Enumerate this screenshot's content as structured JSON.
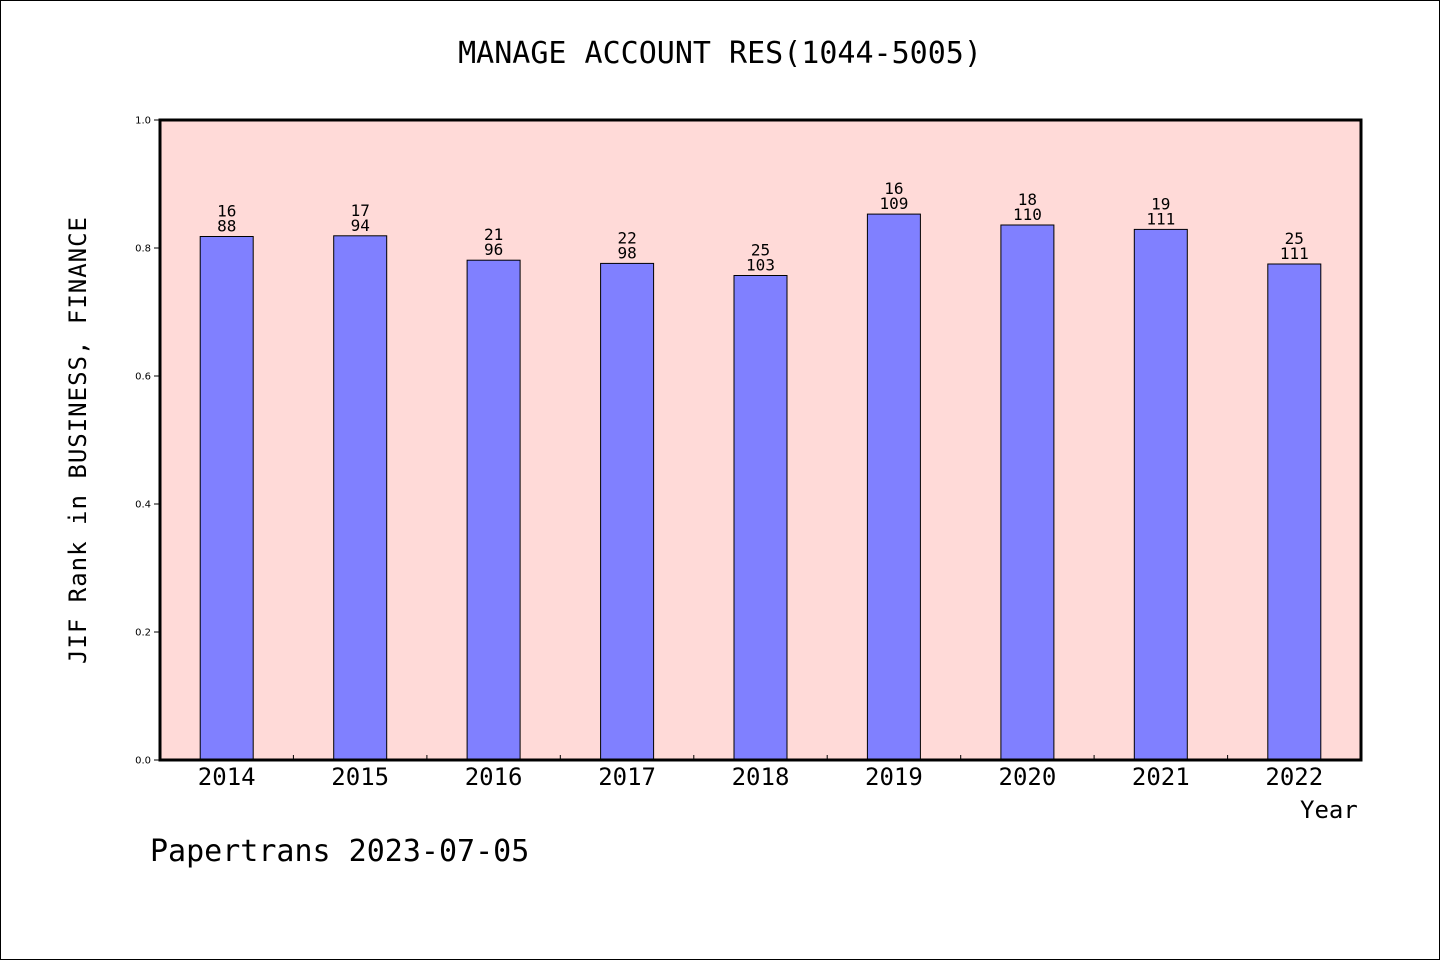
{
  "title": "MANAGE ACCOUNT RES(1044-5005)",
  "footer": "Papertrans 2023-07-05",
  "colors": {
    "plot_background": "#ffdad8",
    "bar_fill": "#8080ff",
    "bar_stroke": "#000000"
  },
  "chart_data": {
    "type": "bar",
    "title": "MANAGE ACCOUNT RES(1044-5005)",
    "xlabel": "Year",
    "ylabel": "JIF Rank in BUSINESS, FINANCE",
    "ylim": [
      0.0,
      1.0
    ],
    "yticks": [
      "0.0",
      "0.2",
      "0.4",
      "0.6",
      "0.8",
      "1.0"
    ],
    "ytick_values": [
      0.0,
      0.2,
      0.4,
      0.6,
      0.8,
      1.0
    ],
    "grid": false,
    "categories": [
      "2014",
      "2015",
      "2016",
      "2017",
      "2018",
      "2019",
      "2020",
      "2021",
      "2022"
    ],
    "values": [
      0.818,
      0.819,
      0.781,
      0.776,
      0.757,
      0.853,
      0.836,
      0.829,
      0.775
    ],
    "label_top": [
      "16",
      "17",
      "21",
      "22",
      "25",
      "16",
      "18",
      "19",
      "25"
    ],
    "label_bottom": [
      "88",
      "94",
      "96",
      "98",
      "103",
      "109",
      "110",
      "111",
      "111"
    ]
  }
}
